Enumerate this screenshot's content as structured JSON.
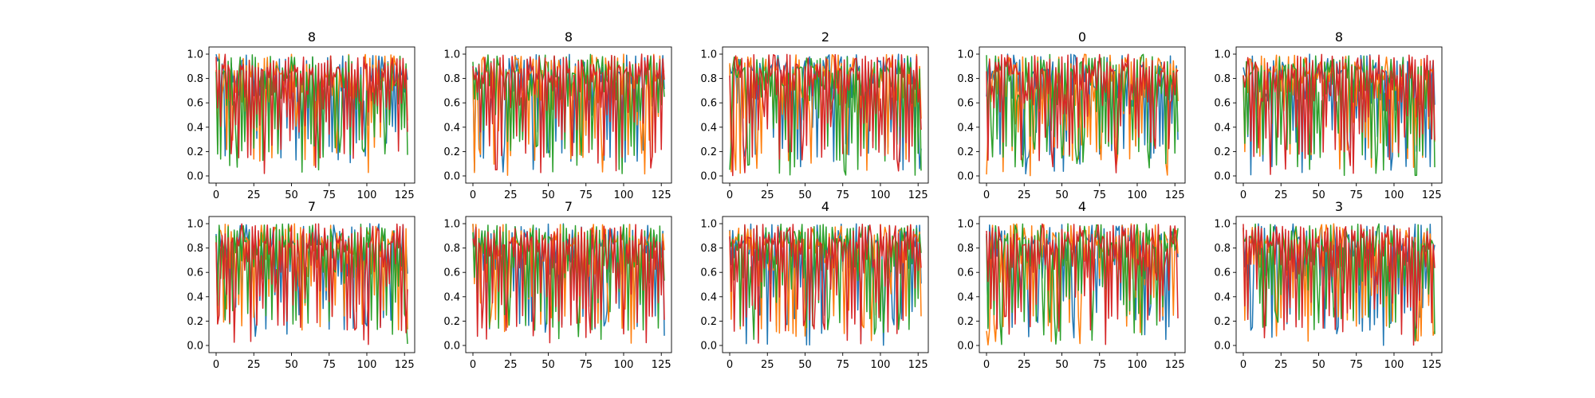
{
  "figure": {
    "series_colors": [
      "#1f77b4",
      "#ff7f0e",
      "#2ca02c",
      "#d62728"
    ],
    "x_ticks": [
      0,
      25,
      50,
      75,
      100,
      125
    ],
    "y_ticks": [
      "0.0",
      "0.2",
      "0.4",
      "0.6",
      "0.8",
      "1.0"
    ]
  },
  "chart_data": [
    {
      "type": "line",
      "title": "8",
      "xlim": [
        0,
        127
      ],
      "ylim": [
        0,
        1
      ],
      "grid": false,
      "series_count": 4
    },
    {
      "type": "line",
      "title": "8",
      "xlim": [
        0,
        127
      ],
      "ylim": [
        0,
        1
      ],
      "grid": false,
      "series_count": 4
    },
    {
      "type": "line",
      "title": "2",
      "xlim": [
        0,
        127
      ],
      "ylim": [
        0,
        1
      ],
      "grid": false,
      "series_count": 4
    },
    {
      "type": "line",
      "title": "0",
      "xlim": [
        0,
        127
      ],
      "ylim": [
        0,
        1
      ],
      "grid": false,
      "series_count": 4
    },
    {
      "type": "line",
      "title": "8",
      "xlim": [
        0,
        127
      ],
      "ylim": [
        0,
        1
      ],
      "grid": false,
      "series_count": 4
    },
    {
      "type": "line",
      "title": "7",
      "xlim": [
        0,
        127
      ],
      "ylim": [
        0,
        1
      ],
      "grid": false,
      "series_count": 4
    },
    {
      "type": "line",
      "title": "7",
      "xlim": [
        0,
        127
      ],
      "ylim": [
        0,
        1
      ],
      "grid": false,
      "series_count": 4
    },
    {
      "type": "line",
      "title": "4",
      "xlim": [
        0,
        127
      ],
      "ylim": [
        0,
        1
      ],
      "grid": false,
      "series_count": 4
    },
    {
      "type": "line",
      "title": "4",
      "xlim": [
        0,
        127
      ],
      "ylim": [
        0,
        1
      ],
      "grid": false,
      "series_count": 4
    },
    {
      "type": "line",
      "title": "3",
      "xlim": [
        0,
        127
      ],
      "ylim": [
        0,
        1
      ],
      "grid": false,
      "series_count": 4
    }
  ]
}
